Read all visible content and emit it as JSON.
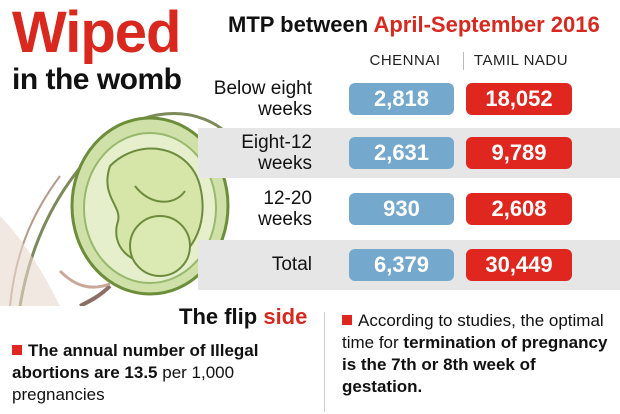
{
  "headline": "Wiped",
  "subheadline": "in the womb",
  "table": {
    "title_prefix": "MTP between ",
    "title_highlight": "April-September 2016",
    "col_chennai": "CHENNAI",
    "col_tn": "TAMIL NADU",
    "rows": [
      {
        "label_line1": "Below eight",
        "label_line2": "weeks",
        "chennai": "2,818",
        "tn": "18,052"
      },
      {
        "label_line1": "Eight-12",
        "label_line2": "weeks",
        "chennai": "2,631",
        "tn": "9,789"
      },
      {
        "label_line1": "12-20",
        "label_line2": "weeks",
        "chennai": "930",
        "tn": "2,608"
      },
      {
        "label_line1": "Total",
        "label_line2": "",
        "chennai": "6,379",
        "tn": "30,449"
      }
    ]
  },
  "chart_data": {
    "type": "table",
    "title": "MTP between April-September 2016",
    "columns": [
      "CHENNAI",
      "TAMIL NADU"
    ],
    "rows": [
      "Below eight weeks",
      "Eight-12 weeks",
      "12-20 weeks",
      "Total"
    ],
    "values": {
      "CHENNAI": [
        2818,
        2631,
        930,
        6379
      ],
      "TAMIL NADU": [
        18052,
        9789,
        2608,
        30449
      ]
    },
    "colors": {
      "CHENNAI": "#74a8cc",
      "TAMIL NADU": "#e0271f"
    }
  },
  "flip": {
    "title_prefix": "The flip ",
    "title_highlight": "side",
    "text_bold": "The annual number of Illegal abortions are 13.5",
    "text_rest": " per 1,000 pregnancies"
  },
  "study": {
    "text_a": "According to studies, the optimal time for ",
    "text_bold_a": "termination of pregnancy is the 7th or 8th week of gestation."
  },
  "colors": {
    "accent_red": "#d9281e",
    "chennai_blue": "#74a8cc",
    "tn_red": "#e0271f"
  }
}
